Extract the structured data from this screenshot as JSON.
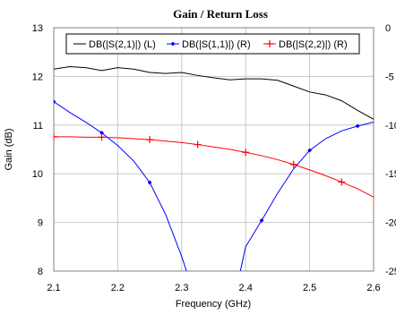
{
  "chart_data": {
    "type": "line",
    "title": "Gain / Return Loss",
    "xlabel": "Frequency (GHz)",
    "xlim": [
      2.1,
      2.6
    ],
    "x_ticks": [
      "2.1",
      "2.2",
      "2.3",
      "2.4",
      "2.5",
      "2.6"
    ],
    "x_tick_values": [
      2.1,
      2.2,
      2.3,
      2.4,
      2.5,
      2.6
    ],
    "left_axis": {
      "label": "Gain (dB)",
      "lim": [
        8,
        13
      ],
      "ticks": [
        "8",
        "9",
        "10",
        "11",
        "12",
        "13"
      ],
      "tick_values": [
        8,
        9,
        10,
        11,
        12,
        13
      ]
    },
    "right_axis": {
      "label": "",
      "lim": [
        -25,
        0
      ],
      "ticks": [
        "-25",
        "-20",
        "-15",
        "-10",
        "-5",
        "0"
      ],
      "tick_values": [
        -25,
        -20,
        -15,
        -10,
        -5,
        0
      ]
    },
    "grid": true,
    "legend_position": "top",
    "series": [
      {
        "name": "DB(|S(2,1)|) (L)",
        "axis": "left",
        "color": "#000000",
        "marker": "none",
        "x": [
          2.1,
          2.125,
          2.15,
          2.175,
          2.2,
          2.225,
          2.25,
          2.275,
          2.3,
          2.325,
          2.35,
          2.375,
          2.4,
          2.425,
          2.45,
          2.475,
          2.5,
          2.525,
          2.55,
          2.575,
          2.6
        ],
        "y": [
          12.15,
          12.2,
          12.18,
          12.12,
          12.18,
          12.15,
          12.08,
          12.06,
          12.08,
          12.02,
          11.97,
          11.93,
          11.95,
          11.95,
          11.92,
          11.8,
          11.68,
          11.62,
          11.5,
          11.3,
          11.12
        ]
      },
      {
        "name": "DB(|S(1,1)|) (R)",
        "axis": "right",
        "color": "#0000ff",
        "marker": "diamond",
        "x": [
          2.1,
          2.125,
          2.15,
          2.175,
          2.2,
          2.225,
          2.25,
          2.275,
          2.3,
          2.31,
          2.39,
          2.4,
          2.425,
          2.45,
          2.475,
          2.5,
          2.525,
          2.55,
          2.575,
          2.6
        ],
        "y": [
          -7.6,
          -8.7,
          -9.7,
          -10.8,
          -12.1,
          -13.7,
          -15.9,
          -19.2,
          -23.5,
          -25.5,
          -25.5,
          -22.5,
          -19.8,
          -17.0,
          -14.5,
          -12.6,
          -11.4,
          -10.6,
          -10.1,
          -9.7
        ]
      },
      {
        "name": "DB(|S(2,2)|) (R)",
        "axis": "right",
        "color": "#ff0000",
        "marker": "plus",
        "x": [
          2.1,
          2.125,
          2.15,
          2.175,
          2.2,
          2.225,
          2.25,
          2.275,
          2.3,
          2.325,
          2.35,
          2.375,
          2.4,
          2.425,
          2.45,
          2.475,
          2.5,
          2.525,
          2.55,
          2.575,
          2.6
        ],
        "y": [
          -11.2,
          -11.2,
          -11.25,
          -11.25,
          -11.3,
          -11.4,
          -11.5,
          -11.65,
          -11.8,
          -12.0,
          -12.25,
          -12.5,
          -12.8,
          -13.15,
          -13.55,
          -14.05,
          -14.6,
          -15.2,
          -15.85,
          -16.55,
          -17.4
        ]
      }
    ]
  }
}
